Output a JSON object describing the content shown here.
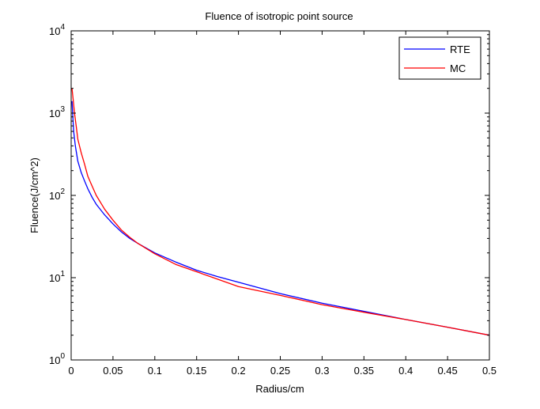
{
  "chart_data": {
    "type": "line",
    "title": "Fluence of isotropic point source",
    "xlabel": "Radius/cm",
    "ylabel": "Fluence(J/cm^2)",
    "xlim": [
      0,
      0.5
    ],
    "ylim": [
      1,
      10000
    ],
    "yscale": "log",
    "xticks": [
      "0",
      "0.05",
      "0.1",
      "0.15",
      "0.2",
      "0.25",
      "0.3",
      "0.35",
      "0.4",
      "0.45",
      "0.5"
    ],
    "xtick_values": [
      0,
      0.05,
      0.1,
      0.15,
      0.2,
      0.25,
      0.3,
      0.35,
      0.4,
      0.45,
      0.5
    ],
    "yticks": [
      {
        "value": 1,
        "base": "10",
        "exp": "0"
      },
      {
        "value": 10,
        "base": "10",
        "exp": "1"
      },
      {
        "value": 100,
        "base": "10",
        "exp": "2"
      },
      {
        "value": 1000,
        "base": "10",
        "exp": "3"
      },
      {
        "value": 10000,
        "base": "10",
        "exp": "4"
      }
    ],
    "grid": false,
    "legend_position": "top-right",
    "series": [
      {
        "name": "RTE",
        "color": "#0000ff",
        "x": [
          0.001,
          0.002,
          0.003,
          0.005,
          0.008,
          0.012,
          0.016,
          0.02,
          0.025,
          0.03,
          0.04,
          0.05,
          0.06,
          0.07,
          0.08,
          0.1,
          0.125,
          0.15,
          0.175,
          0.2,
          0.25,
          0.3,
          0.35,
          0.4,
          0.45,
          0.5
        ],
        "y": [
          1400,
          900,
          600,
          400,
          260,
          190,
          150,
          120,
          95,
          78,
          58,
          45,
          36,
          30,
          26,
          20,
          15.5,
          12.3,
          10.3,
          8.8,
          6.4,
          4.9,
          3.9,
          3.1,
          2.5,
          2.0
        ]
      },
      {
        "name": "MC",
        "color": "#ff0000",
        "x": [
          0.001,
          0.002,
          0.004,
          0.006,
          0.008,
          0.012,
          0.016,
          0.02,
          0.025,
          0.03,
          0.04,
          0.05,
          0.06,
          0.07,
          0.08,
          0.1,
          0.125,
          0.15,
          0.175,
          0.2,
          0.25,
          0.3,
          0.35,
          0.4,
          0.45,
          0.5
        ],
        "y": [
          2000,
          1600,
          1000,
          700,
          480,
          330,
          240,
          170,
          130,
          100,
          68,
          50,
          38,
          31,
          26,
          19.5,
          14.5,
          11.8,
          9.6,
          7.8,
          6.1,
          4.7,
          3.8,
          3.1,
          2.5,
          2.0
        ]
      }
    ]
  }
}
